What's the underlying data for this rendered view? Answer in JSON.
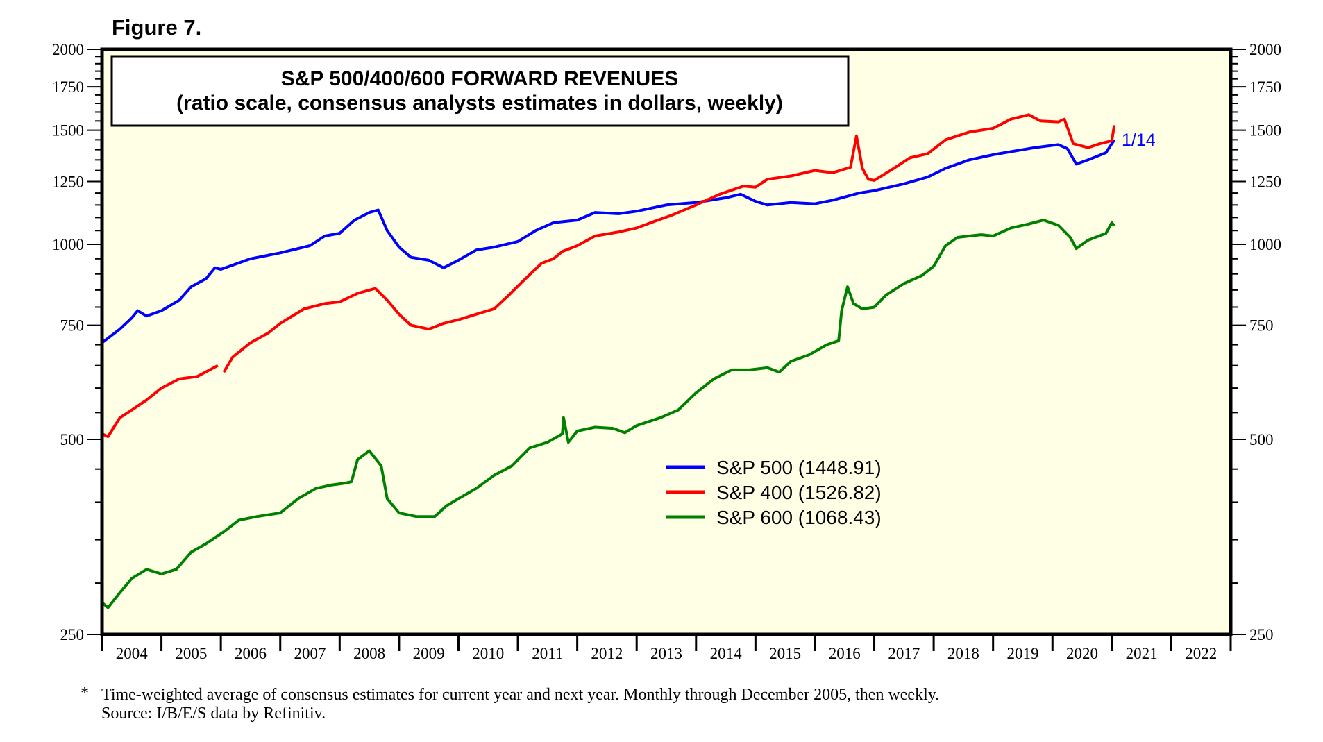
{
  "figure_label": "Figure 7.",
  "footnote": {
    "marker": "*",
    "line1": "Time-weighted average of consensus estimates for current year and next year. Monthly through December 2005, then weekly.",
    "line2": "Source: I/B/E/S data by Refinitiv."
  },
  "colors": {
    "background": "#ffffe6",
    "sp500": "#0000ff",
    "sp400": "#ff0000",
    "sp600": "#008000"
  },
  "chart_data": {
    "type": "line",
    "title": "S&P 500/400/600 FORWARD REVENUES",
    "subtitle": "(ratio scale, consensus analysts estimates in dollars, weekly)",
    "yscale": "log",
    "ylim": [
      250,
      2000
    ],
    "xlim": [
      2004,
      2023
    ],
    "ytick_labels": [
      "250",
      "500",
      "750",
      "1000",
      "1250",
      "1500",
      "1750",
      "2000"
    ],
    "ytick_values": [
      250,
      500,
      750,
      1000,
      1250,
      1500,
      1750,
      2000
    ],
    "yminor_values": [
      300,
      350,
      400,
      450,
      550,
      600,
      650,
      700,
      800,
      850,
      900,
      950,
      1050,
      1100,
      1150,
      1200,
      1300,
      1350,
      1400,
      1450,
      1550,
      1600,
      1650,
      1700,
      1800,
      1850,
      1900,
      1950
    ],
    "xtick_labels": [
      "2004",
      "2005",
      "2006",
      "2007",
      "2008",
      "2009",
      "2010",
      "2011",
      "2012",
      "2013",
      "2014",
      "2015",
      "2016",
      "2017",
      "2018",
      "2019",
      "2020",
      "2021",
      "2022"
    ],
    "end_annotation": "1/14",
    "legend_position": "center",
    "series": [
      {
        "name": "S&P 500",
        "legend": "S&P 500 (1448.91)",
        "last_value": 1448.91,
        "x": [
          2004.0,
          2004.3,
          2004.5,
          2004.6,
          2004.75,
          2005.0,
          2005.3,
          2005.5,
          2005.75,
          2005.9,
          2006.0,
          2006.5,
          2007.0,
          2007.5,
          2007.75,
          2008.0,
          2008.25,
          2008.5,
          2008.65,
          2008.8,
          2009.0,
          2009.2,
          2009.5,
          2009.75,
          2010.0,
          2010.3,
          2010.6,
          2011.0,
          2011.3,
          2011.6,
          2012.0,
          2012.3,
          2012.7,
          2013.0,
          2013.5,
          2014.0,
          2014.5,
          2014.75,
          2015.0,
          2015.2,
          2015.6,
          2016.0,
          2016.3,
          2016.75,
          2017.0,
          2017.5,
          2017.9,
          2018.2,
          2018.6,
          2019.0,
          2019.3,
          2019.7,
          2020.1,
          2020.25,
          2020.4,
          2020.6,
          2020.9,
          2021.04
        ],
        "y": [
          705,
          740,
          770,
          790,
          775,
          790,
          820,
          860,
          885,
          920,
          915,
          950,
          970,
          995,
          1030,
          1040,
          1090,
          1120,
          1130,
          1050,
          990,
          955,
          945,
          920,
          945,
          980,
          990,
          1010,
          1050,
          1080,
          1090,
          1120,
          1115,
          1125,
          1150,
          1160,
          1180,
          1195,
          1165,
          1150,
          1160,
          1155,
          1170,
          1200,
          1210,
          1240,
          1270,
          1310,
          1350,
          1375,
          1390,
          1410,
          1425,
          1405,
          1330,
          1350,
          1385,
          1448.91
        ]
      },
      {
        "name": "S&P 400",
        "legend": "S&P 400 (1526.82)",
        "last_value": 1526.82,
        "x": [
          2004.0,
          2004.1,
          2004.3,
          2004.5,
          2004.75,
          2005.0,
          2005.3,
          2005.6,
          2005.95,
          2006.0,
          2006.05,
          2006.2,
          2006.5,
          2006.8,
          2007.0,
          2007.4,
          2007.75,
          2008.0,
          2008.3,
          2008.6,
          2008.8,
          2009.0,
          2009.2,
          2009.5,
          2009.75,
          2010.0,
          2010.3,
          2010.6,
          2010.85,
          2011.1,
          2011.4,
          2011.6,
          2011.75,
          2012.0,
          2012.3,
          2012.7,
          2013.0,
          2013.3,
          2013.6,
          2014.0,
          2014.4,
          2014.8,
          2015.0,
          2015.2,
          2015.6,
          2016.0,
          2016.3,
          2016.6,
          2016.7,
          2016.8,
          2016.9,
          2017.0,
          2017.3,
          2017.6,
          2017.9,
          2018.2,
          2018.6,
          2019.0,
          2019.3,
          2019.6,
          2019.8,
          2020.1,
          2020.2,
          2020.35,
          2020.6,
          2020.8,
          2021.0,
          2021.04
        ],
        "y": [
          510,
          505,
          540,
          555,
          575,
          600,
          620,
          625,
          650,
          null,
          635,
          670,
          705,
          730,
          755,
          795,
          810,
          815,
          840,
          855,
          820,
          780,
          750,
          740,
          755,
          765,
          780,
          795,
          835,
          880,
          935,
          950,
          975,
          995,
          1030,
          1045,
          1060,
          1085,
          1110,
          1150,
          1195,
          1230,
          1225,
          1260,
          1275,
          1300,
          1290,
          1315,
          1470,
          1310,
          1260,
          1255,
          1305,
          1360,
          1380,
          1450,
          1490,
          1510,
          1560,
          1585,
          1550,
          1545,
          1560,
          1430,
          1410,
          1430,
          1445,
          1526.82
        ]
      },
      {
        "name": "S&P 600",
        "legend": "S&P 600 (1068.43)",
        "last_value": 1068.43,
        "x": [
          2004.0,
          2004.1,
          2004.3,
          2004.5,
          2004.75,
          2005.0,
          2005.25,
          2005.5,
          2005.75,
          2005.95,
          2006.05,
          2006.3,
          2006.6,
          2007.0,
          2007.3,
          2007.6,
          2007.85,
          2008.1,
          2008.2,
          2008.3,
          2008.5,
          2008.7,
          2008.8,
          2009.0,
          2009.3,
          2009.6,
          2009.8,
          2010.0,
          2010.3,
          2010.6,
          2010.9,
          2011.2,
          2011.5,
          2011.75,
          2011.77,
          2011.85,
          2012.0,
          2012.3,
          2012.6,
          2012.8,
          2013.0,
          2013.4,
          2013.7,
          2014.0,
          2014.3,
          2014.6,
          2014.9,
          2015.2,
          2015.4,
          2015.6,
          2015.9,
          2016.2,
          2016.4,
          2016.45,
          2016.55,
          2016.65,
          2016.8,
          2017.0,
          2017.2,
          2017.5,
          2017.8,
          2018.0,
          2018.2,
          2018.4,
          2018.6,
          2018.8,
          2019.0,
          2019.3,
          2019.6,
          2019.85,
          2020.1,
          2020.3,
          2020.4,
          2020.6,
          2020.9,
          2021.0,
          2021.04
        ],
        "y": [
          280,
          275,
          290,
          305,
          315,
          310,
          315,
          335,
          345,
          355,
          360,
          375,
          380,
          385,
          405,
          420,
          425,
          428,
          430,
          465,
          480,
          455,
          405,
          385,
          380,
          380,
          395,
          405,
          420,
          440,
          455,
          485,
          495,
          510,
          540,
          495,
          515,
          522,
          520,
          512,
          525,
          540,
          555,
          590,
          620,
          640,
          640,
          645,
          635,
          660,
          675,
          700,
          710,
          790,
          860,
          810,
          795,
          800,
          835,
          870,
          895,
          925,
          995,
          1025,
          1030,
          1035,
          1030,
          1060,
          1075,
          1090,
          1070,
          1025,
          985,
          1015,
          1040,
          1080,
          1068.43
        ]
      }
    ]
  }
}
